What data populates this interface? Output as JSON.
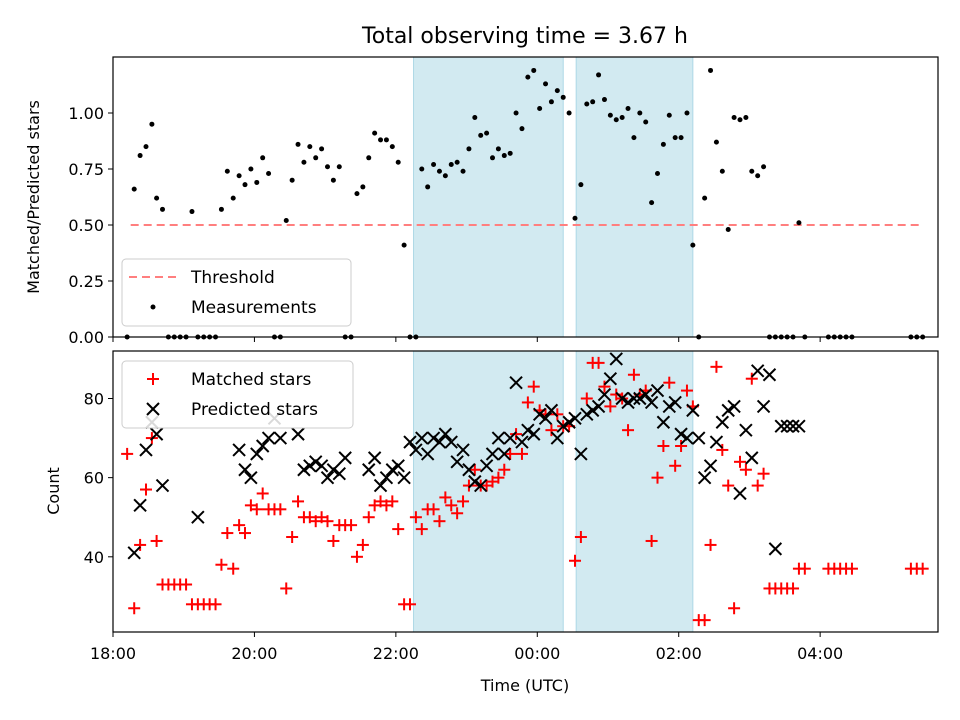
{
  "chart_data": [
    {
      "type": "scatter",
      "title": "Total observing time = 3.67 h",
      "xlabel": "",
      "ylabel": "Matched/Predicted stars",
      "xlim": [
        "18:00",
        "05:40"
      ],
      "ylim": [
        0,
        1.25
      ],
      "yticks": [
        "0.00",
        "0.25",
        "0.50",
        "0.75",
        "1.00"
      ],
      "xticks": [
        "18:00",
        "20:00",
        "22:00",
        "00:00",
        "02:00",
        "04:00"
      ],
      "legend_position": "lower-left",
      "shaded_intervals": [
        [
          "22:15",
          "00:22"
        ],
        [
          "00:33",
          "02:12"
        ]
      ],
      "colors": {
        "shade": "#add8e6",
        "threshold": "#ff7f7f",
        "measurements": "#000000"
      },
      "series": [
        {
          "name": "Threshold",
          "kind": "dashed-line",
          "x": [
            "18:15",
            "05:25"
          ],
          "y": [
            0.5,
            0.5
          ]
        },
        {
          "name": "Measurements",
          "kind": "points",
          "x": [
            "18:12",
            "18:18",
            "18:23",
            "18:28",
            "18:33",
            "18:37",
            "18:42",
            "18:47",
            "18:52",
            "18:57",
            "19:02",
            "19:07",
            "19:12",
            "19:17",
            "19:22",
            "19:27",
            "19:32",
            "19:37",
            "19:42",
            "19:47",
            "19:52",
            "19:57",
            "20:02",
            "20:07",
            "20:12",
            "20:17",
            "20:22",
            "20:27",
            "20:32",
            "20:37",
            "20:42",
            "20:47",
            "20:52",
            "20:57",
            "21:02",
            "21:07",
            "21:12",
            "21:17",
            "21:22",
            "21:27",
            "21:32",
            "21:37",
            "21:42",
            "21:47",
            "21:52",
            "21:57",
            "22:02",
            "22:07",
            "22:12",
            "22:17",
            "22:22",
            "22:27",
            "22:32",
            "22:37",
            "22:42",
            "22:47",
            "22:52",
            "22:57",
            "23:02",
            "23:07",
            "23:12",
            "23:17",
            "23:22",
            "23:27",
            "23:32",
            "23:37",
            "23:42",
            "23:47",
            "23:52",
            "23:57",
            "00:02",
            "00:07",
            "00:12",
            "00:17",
            "00:22",
            "00:27",
            "00:32",
            "00:37",
            "00:42",
            "00:47",
            "00:52",
            "00:57",
            "01:02",
            "01:07",
            "01:12",
            "01:17",
            "01:22",
            "01:27",
            "01:32",
            "01:37",
            "01:42",
            "01:47",
            "01:52",
            "01:57",
            "02:02",
            "02:07",
            "02:12",
            "02:17",
            "02:22",
            "02:27",
            "02:32",
            "02:37",
            "02:42",
            "02:47",
            "02:52",
            "02:57",
            "03:02",
            "03:07",
            "03:12",
            "03:17",
            "03:22",
            "03:27",
            "03:32",
            "03:37",
            "03:42",
            "03:47",
            "04:07",
            "04:12",
            "04:17",
            "04:22",
            "04:27",
            "05:17",
            "05:22",
            "05:27"
          ],
          "y": [
            0.0,
            0.66,
            0.81,
            0.85,
            0.95,
            0.62,
            0.57,
            0.0,
            0.0,
            0.0,
            0.0,
            0.56,
            0.0,
            0.0,
            0.0,
            0.0,
            0.57,
            0.74,
            0.62,
            0.72,
            0.68,
            0.75,
            0.69,
            0.8,
            0.73,
            0.0,
            0.0,
            0.52,
            0.7,
            0.86,
            0.78,
            0.85,
            0.8,
            0.84,
            0.76,
            0.7,
            0.76,
            0.0,
            0.0,
            0.64,
            0.67,
            0.8,
            0.91,
            0.88,
            0.88,
            0.85,
            0.78,
            0.41,
            0.0,
            0.0,
            0.75,
            0.67,
            0.77,
            0.74,
            0.72,
            0.77,
            0.78,
            0.74,
            0.84,
            0.98,
            0.9,
            0.91,
            0.8,
            0.84,
            0.81,
            0.82,
            1.0,
            0.93,
            1.16,
            1.19,
            1.02,
            1.13,
            1.05,
            1.1,
            1.07,
            1.0,
            0.53,
            0.68,
            1.04,
            1.05,
            1.17,
            1.06,
            0.99,
            0.97,
            0.98,
            1.02,
            0.89,
            1.0,
            0.96,
            0.6,
            0.73,
            0.86,
            0.99,
            0.89,
            0.89,
            1.0,
            0.41,
            0.0,
            0.62,
            1.19,
            0.87,
            0.74,
            0.48,
            0.98,
            0.97,
            0.98,
            0.74,
            0.72,
            0.76,
            0.0,
            0.0,
            0.0,
            0.0,
            0.0,
            0.51,
            0.0,
            0.0,
            0.0,
            0.0,
            0.0,
            0.0,
            0.0,
            0.0,
            0.0
          ]
        }
      ]
    },
    {
      "type": "scatter",
      "title": "",
      "xlabel": "Time (UTC)",
      "ylabel": "Count",
      "xlim": [
        "18:00",
        "05:40"
      ],
      "ylim": [
        21,
        92
      ],
      "yticks": [
        "40",
        "60",
        "80"
      ],
      "xticks": [
        "18:00",
        "20:00",
        "22:00",
        "00:00",
        "02:00",
        "04:00"
      ],
      "legend_position": "upper-left",
      "shaded_intervals": [
        [
          "22:15",
          "00:22"
        ],
        [
          "00:33",
          "02:12"
        ]
      ],
      "colors": {
        "shade": "#add8e6",
        "matched": "#ff0000",
        "predicted": "#000000"
      },
      "series": [
        {
          "name": "Matched stars",
          "marker": "plus",
          "x": [
            "18:12",
            "18:18",
            "18:23",
            "18:28",
            "18:33",
            "18:37",
            "18:42",
            "18:47",
            "18:52",
            "18:57",
            "19:02",
            "19:07",
            "19:12",
            "19:17",
            "19:22",
            "19:27",
            "19:32",
            "19:37",
            "19:42",
            "19:47",
            "19:52",
            "19:57",
            "20:02",
            "20:07",
            "20:12",
            "20:17",
            "20:22",
            "20:27",
            "20:32",
            "20:37",
            "20:42",
            "20:47",
            "20:52",
            "20:57",
            "21:02",
            "21:07",
            "21:12",
            "21:17",
            "21:22",
            "21:27",
            "21:32",
            "21:37",
            "21:42",
            "21:47",
            "21:52",
            "21:57",
            "22:02",
            "22:07",
            "22:12",
            "22:17",
            "22:22",
            "22:27",
            "22:32",
            "22:37",
            "22:42",
            "22:47",
            "22:52",
            "22:57",
            "23:02",
            "23:07",
            "23:12",
            "23:17",
            "23:22",
            "23:27",
            "23:32",
            "23:37",
            "23:42",
            "23:47",
            "23:52",
            "23:57",
            "00:02",
            "00:07",
            "00:12",
            "00:17",
            "00:22",
            "00:27",
            "00:32",
            "00:37",
            "00:42",
            "00:47",
            "00:52",
            "00:57",
            "01:02",
            "01:07",
            "01:12",
            "01:17",
            "01:22",
            "01:27",
            "01:32",
            "01:37",
            "01:42",
            "01:47",
            "01:52",
            "01:57",
            "02:02",
            "02:07",
            "02:12",
            "02:17",
            "02:22",
            "02:27",
            "02:32",
            "02:37",
            "02:42",
            "02:47",
            "02:52",
            "02:57",
            "03:02",
            "03:07",
            "03:12",
            "03:17",
            "03:22",
            "03:27",
            "03:32",
            "03:37",
            "03:42",
            "03:47",
            "04:07",
            "04:12",
            "04:17",
            "04:22",
            "04:27",
            "05:17",
            "05:22",
            "05:27"
          ],
          "y": [
            66,
            27,
            43,
            57,
            70,
            44,
            33,
            33,
            33,
            33,
            33,
            28,
            28,
            28,
            28,
            28,
            38,
            46,
            37,
            48,
            46,
            53,
            52,
            56,
            52,
            52,
            52,
            32,
            45,
            54,
            50,
            50,
            49,
            50,
            49,
            44,
            48,
            48,
            48,
            40,
            43,
            50,
            53,
            54,
            53,
            54,
            47,
            28,
            28,
            50,
            47,
            52,
            52,
            49,
            55,
            53,
            51,
            54,
            58,
            62,
            58,
            58,
            59,
            60,
            62,
            66,
            71,
            66,
            79,
            83,
            77,
            76,
            72,
            76,
            73,
            73,
            39,
            45,
            80,
            89,
            89,
            83,
            78,
            81,
            80,
            72,
            86,
            81,
            82,
            44,
            60,
            68,
            84,
            63,
            68,
            82,
            78,
            24,
            24,
            43,
            88,
            67,
            58,
            27,
            64,
            62,
            85,
            58,
            61,
            32,
            32,
            32,
            32,
            32,
            37,
            37,
            37,
            37,
            37,
            37,
            37,
            37,
            37,
            37
          ]
        },
        {
          "name": "Predicted stars",
          "marker": "x",
          "x": [
            "18:18",
            "18:23",
            "18:28",
            "18:33",
            "18:37",
            "18:42",
            "19:12",
            "19:47",
            "19:52",
            "19:57",
            "20:02",
            "20:07",
            "20:12",
            "20:17",
            "20:22",
            "20:37",
            "20:42",
            "20:47",
            "20:52",
            "20:57",
            "21:02",
            "21:07",
            "21:12",
            "21:17",
            "21:37",
            "21:42",
            "21:47",
            "21:52",
            "21:57",
            "22:02",
            "22:07",
            "22:12",
            "22:17",
            "22:22",
            "22:27",
            "22:32",
            "22:37",
            "22:42",
            "22:47",
            "22:52",
            "22:57",
            "23:02",
            "23:07",
            "23:12",
            "23:17",
            "23:22",
            "23:27",
            "23:32",
            "23:37",
            "23:42",
            "23:47",
            "23:52",
            "23:57",
            "00:02",
            "00:07",
            "00:12",
            "00:17",
            "00:22",
            "00:27",
            "00:32",
            "00:37",
            "00:42",
            "00:47",
            "00:52",
            "00:57",
            "01:02",
            "01:07",
            "01:12",
            "01:17",
            "01:22",
            "01:27",
            "01:32",
            "01:37",
            "01:42",
            "01:47",
            "01:52",
            "01:57",
            "02:02",
            "02:07",
            "02:12",
            "02:17",
            "02:22",
            "02:27",
            "02:32",
            "02:37",
            "02:42",
            "02:47",
            "02:52",
            "02:57",
            "03:02",
            "03:07",
            "03:12",
            "03:17",
            "03:22",
            "03:27",
            "03:32",
            "03:37",
            "03:42"
          ],
          "y": [
            41,
            53,
            67,
            74,
            71,
            58,
            50,
            67,
            62,
            60,
            66,
            68,
            70,
            75,
            70,
            71,
            62,
            63,
            64,
            63,
            60,
            62,
            61,
            65,
            62,
            65,
            58,
            60,
            62,
            63,
            60,
            69,
            67,
            70,
            66,
            70,
            69,
            71,
            69,
            64,
            67,
            62,
            59,
            58,
            63,
            66,
            70,
            66,
            70,
            84,
            69,
            72,
            71,
            76,
            75,
            77,
            70,
            73,
            74,
            75,
            66,
            76,
            77,
            78,
            81,
            85,
            90,
            80,
            79,
            80,
            80,
            81,
            79,
            82,
            74,
            78,
            79,
            71,
            70,
            77,
            70,
            60,
            63,
            69,
            74,
            77,
            78,
            56,
            72,
            65,
            87,
            78,
            86,
            42,
            73,
            73,
            73,
            73
          ]
        }
      ]
    }
  ]
}
